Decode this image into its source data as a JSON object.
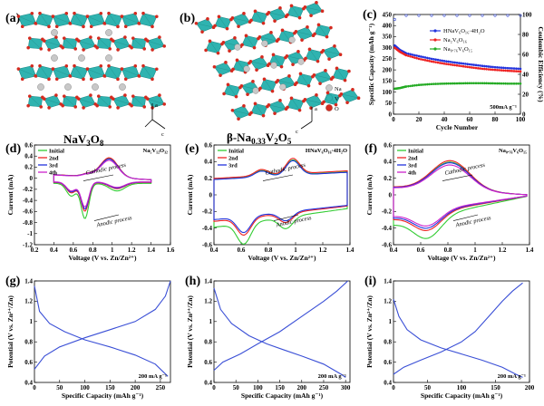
{
  "panels": {
    "a": {
      "label": "(a)",
      "name": "NaV",
      "sub1": "3",
      "tail": "O",
      "sub2": "8"
    },
    "b": {
      "label": "(b)",
      "prefix": "β-Na",
      "sub1": "0.33",
      "mid": "V",
      "sub2": "2",
      "tail": "O",
      "sub3": "5",
      "axes_legend": [
        "Na",
        "V",
        "O"
      ],
      "axes": [
        "a",
        "c"
      ]
    },
    "c": {
      "label": "(c)"
    },
    "d": {
      "label": "(d)"
    },
    "e": {
      "label": "(e)"
    },
    "f": {
      "label": "(f)"
    },
    "g": {
      "label": "(g)"
    },
    "h": {
      "label": "(h)"
    },
    "i": {
      "label": "(i)"
    }
  },
  "colors": {
    "teal": "#2fb3b0",
    "teal_dark": "#1e8f8c",
    "red_atom": "#d42a1f",
    "grey_atom": "#c8c8c8",
    "blue": "#2233dd",
    "red": "#ee2222",
    "green": "#22aa22",
    "magenta": "#cc22cc",
    "line_blue": "#3a4fd6"
  },
  "chart_data": [
    {
      "id": "c",
      "type": "scatter",
      "xlabel": "Cycle Number",
      "ylabel": "Specific Capacity (mAh g⁻¹)",
      "y2label": "Coulombic Efficiency (%)",
      "xlim": [
        0,
        100
      ],
      "ylim": [
        0,
        450
      ],
      "y2lim": [
        0,
        100
      ],
      "xticks": [
        0,
        20,
        40,
        60,
        80,
        100
      ],
      "yticks": [
        0,
        50,
        100,
        150,
        200,
        250,
        300,
        350,
        400,
        450
      ],
      "y2ticks": [
        0,
        20,
        40,
        60,
        80,
        100
      ],
      "annotation": "500mA g⁻¹",
      "series": [
        {
          "name": "HNaV₆O₁₆·4H₂O",
          "color": "#2233dd",
          "points": [
            [
              1,
              310
            ],
            [
              5,
              290
            ],
            [
              10,
              275
            ],
            [
              20,
              262
            ],
            [
              30,
              250
            ],
            [
              40,
              240
            ],
            [
              50,
              232
            ],
            [
              60,
              225
            ],
            [
              70,
              218
            ],
            [
              80,
              212
            ],
            [
              90,
              208
            ],
            [
              100,
              205
            ]
          ]
        },
        {
          "name": "Na₂V₆O₁₆",
          "color": "#ee2222",
          "points": [
            [
              1,
              300
            ],
            [
              5,
              282
            ],
            [
              10,
              266
            ],
            [
              20,
              250
            ],
            [
              30,
              238
            ],
            [
              40,
              228
            ],
            [
              50,
              220
            ],
            [
              60,
              212
            ],
            [
              70,
              205
            ],
            [
              80,
              200
            ],
            [
              90,
              196
            ],
            [
              100,
              193
            ]
          ]
        },
        {
          "name": "Na₀.₇₆V₆O₁₅",
          "color": "#22aa22",
          "points": [
            [
              1,
              115
            ],
            [
              5,
              118
            ],
            [
              10,
              125
            ],
            [
              20,
              132
            ],
            [
              30,
              136
            ],
            [
              40,
              138
            ],
            [
              50,
              139
            ],
            [
              60,
              140
            ],
            [
              70,
              140
            ],
            [
              80,
              139
            ],
            [
              90,
              138
            ],
            [
              100,
              138
            ]
          ]
        }
      ],
      "efficiency": [
        [
          1,
          95
        ],
        [
          10,
          99
        ],
        [
          20,
          99
        ],
        [
          30,
          99
        ],
        [
          40,
          99
        ],
        [
          50,
          99
        ],
        [
          60,
          99
        ],
        [
          70,
          99
        ],
        [
          80,
          99
        ],
        [
          90,
          99
        ],
        [
          100,
          99
        ]
      ]
    },
    {
      "id": "d",
      "type": "line",
      "title": "Na₅V₁₂O₃₂",
      "xlabel": "Voltage (V vs. Zn/Zn²⁺)",
      "ylabel": "Current (mA)",
      "xlim": [
        0.2,
        1.6
      ],
      "ylim": [
        -1.2,
        0.6
      ],
      "xticks": [
        0.2,
        0.4,
        0.6,
        0.8,
        1.0,
        1.2,
        1.4,
        1.6
      ],
      "yticks": [
        -1.2,
        -1.0,
        -0.8,
        -0.6,
        -0.4,
        -0.2,
        0.0,
        0.2,
        0.4,
        0.6
      ],
      "arrows": [
        "Cathodic process",
        "Anodic process"
      ],
      "series": [
        {
          "name": "Initial",
          "color": "#33cc33"
        },
        {
          "name": "2nd",
          "color": "#ee2222"
        },
        {
          "name": "3rd",
          "color": "#2233dd"
        },
        {
          "name": "4th",
          "color": "#cc22cc"
        }
      ]
    },
    {
      "id": "e",
      "type": "line",
      "title": "HNaV₆O₁₆·4H₂O",
      "xlabel": "Voltage (V vs. Zn/Zn²⁺)",
      "ylabel": "Current (mA)",
      "xlim": [
        0.4,
        1.4
      ],
      "ylim": [
        -0.6,
        0.6
      ],
      "xticks": [
        0.4,
        0.6,
        0.8,
        1.0,
        1.2,
        1.4
      ],
      "yticks": [
        -0.6,
        -0.4,
        -0.2,
        0.0,
        0.2,
        0.4,
        0.6
      ],
      "arrows": [
        "Cathodic process",
        "Anodic process"
      ],
      "series": [
        {
          "name": "Initial",
          "color": "#33cc33"
        },
        {
          "name": "2nd",
          "color": "#ee2222"
        },
        {
          "name": "3rd",
          "color": "#2233dd"
        }
      ]
    },
    {
      "id": "f",
      "type": "line",
      "title": "Na₀.₇₆V₆O₁₅",
      "xlabel": "Voltage (V vs. Zn/Zn²⁺)",
      "ylabel": "Current (mA)",
      "xlim": [
        0.4,
        1.4
      ],
      "ylim": [
        -0.6,
        0.6
      ],
      "xticks": [
        0.4,
        0.6,
        0.8,
        1.0,
        1.2,
        1.4
      ],
      "yticks": [
        -0.6,
        -0.4,
        -0.2,
        0.0,
        0.2,
        0.4,
        0.6
      ],
      "arrows": [
        "Cathodic process",
        "Anodic process"
      ],
      "series": [
        {
          "name": "Initial",
          "color": "#33cc33"
        },
        {
          "name": "2nd",
          "color": "#ee2222"
        },
        {
          "name": "3rd",
          "color": "#2233dd"
        },
        {
          "name": "4th",
          "color": "#cc22cc"
        }
      ]
    },
    {
      "id": "g",
      "type": "line",
      "xlabel": "Specific Capacity (mAh g⁻¹)",
      "ylabel": "Potential (V vs. Zn²⁺/Zn)",
      "xlim": [
        0,
        270
      ],
      "ylim": [
        0.4,
        1.4
      ],
      "xticks": [
        0,
        50,
        100,
        150,
        200,
        250
      ],
      "yticks": [
        0.4,
        0.6,
        0.8,
        1.0,
        1.2,
        1.4
      ],
      "annotation": "200 mA g⁻¹",
      "series": [
        {
          "name": "charge",
          "points": [
            [
              0,
              0.53
            ],
            [
              20,
              0.66
            ],
            [
              50,
              0.75
            ],
            [
              100,
              0.84
            ],
            [
              150,
              0.92
            ],
            [
              200,
              1.0
            ],
            [
              240,
              1.12
            ],
            [
              260,
              1.25
            ],
            [
              270,
              1.4
            ]
          ]
        },
        {
          "name": "discharge",
          "points": [
            [
              0,
              1.35
            ],
            [
              10,
              1.1
            ],
            [
              30,
              0.98
            ],
            [
              60,
              0.9
            ],
            [
              100,
              0.82
            ],
            [
              150,
              0.75
            ],
            [
              200,
              0.67
            ],
            [
              240,
              0.58
            ],
            [
              265,
              0.46
            ]
          ]
        }
      ]
    },
    {
      "id": "h",
      "type": "line",
      "xlabel": "Specific Capacity (mAh g⁻¹)",
      "ylabel": "Potential (V vs. Zn²⁺/Zn)",
      "xlim": [
        0,
        310
      ],
      "ylim": [
        0.4,
        1.4
      ],
      "xticks": [
        0,
        50,
        100,
        150,
        200,
        250,
        300
      ],
      "yticks": [
        0.4,
        0.6,
        0.8,
        1.0,
        1.2,
        1.4
      ],
      "annotation": "200 mA g⁻¹",
      "series": [
        {
          "name": "charge",
          "points": [
            [
              0,
              0.52
            ],
            [
              20,
              0.6
            ],
            [
              60,
              0.68
            ],
            [
              100,
              0.78
            ],
            [
              150,
              0.9
            ],
            [
              200,
              1.05
            ],
            [
              250,
              1.2
            ],
            [
              280,
              1.3
            ],
            [
              305,
              1.4
            ]
          ]
        },
        {
          "name": "discharge",
          "points": [
            [
              0,
              1.33
            ],
            [
              15,
              1.12
            ],
            [
              40,
              0.98
            ],
            [
              80,
              0.86
            ],
            [
              120,
              0.78
            ],
            [
              160,
              0.72
            ],
            [
              200,
              0.66
            ],
            [
              250,
              0.58
            ],
            [
              290,
              0.48
            ],
            [
              300,
              0.45
            ]
          ]
        }
      ]
    },
    {
      "id": "i",
      "type": "line",
      "xlabel": "Specific Capacity (mAh g⁻¹)",
      "ylabel": "Potential (V vs. Zn²⁺/Zn)",
      "xlim": [
        0,
        200
      ],
      "ylim": [
        0.4,
        1.4
      ],
      "xticks": [
        0,
        50,
        100,
        150,
        200
      ],
      "yticks": [
        0.4,
        0.6,
        0.8,
        1.0,
        1.2,
        1.4
      ],
      "annotation": "200 mA g⁻¹",
      "series": [
        {
          "name": "charge",
          "points": [
            [
              0,
              0.48
            ],
            [
              15,
              0.55
            ],
            [
              40,
              0.62
            ],
            [
              70,
              0.7
            ],
            [
              100,
              0.8
            ],
            [
              120,
              0.9
            ],
            [
              140,
              1.05
            ],
            [
              160,
              1.2
            ],
            [
              175,
              1.3
            ],
            [
              190,
              1.38
            ]
          ]
        },
        {
          "name": "discharge",
          "points": [
            [
              0,
              1.22
            ],
            [
              8,
              1.05
            ],
            [
              20,
              0.92
            ],
            [
              40,
              0.82
            ],
            [
              70,
              0.74
            ],
            [
              100,
              0.68
            ],
            [
              130,
              0.62
            ],
            [
              160,
              0.55
            ],
            [
              180,
              0.48
            ],
            [
              190,
              0.45
            ]
          ]
        }
      ]
    }
  ]
}
